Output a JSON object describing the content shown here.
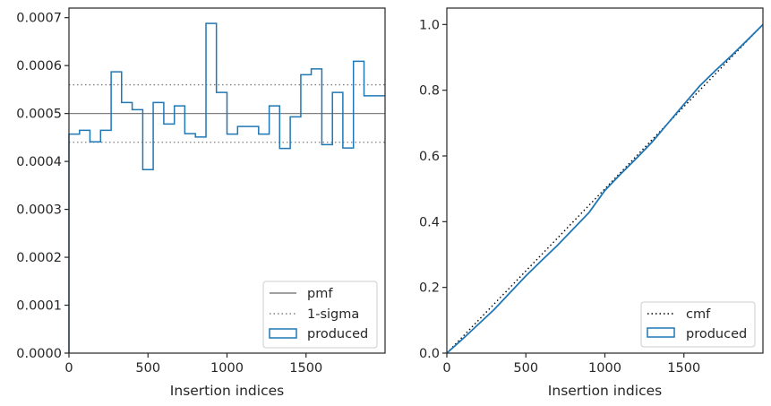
{
  "chart_data": [
    {
      "type": "histogram",
      "xlabel": "Insertion indices",
      "ylabel": "",
      "xlim": [
        0,
        2000
      ],
      "ylim": [
        0,
        0.00072
      ],
      "xticks": [
        0,
        500,
        1000,
        1500
      ],
      "xtick_labels": [
        "0",
        "500",
        "1000",
        "1500"
      ],
      "yticks": [
        0,
        0.0001,
        0.0002,
        0.0003,
        0.0004,
        0.0005,
        0.0006,
        0.0007
      ],
      "ytick_labels": [
        "0.0000",
        "0.0001",
        "0.0002",
        "0.0003",
        "0.0004",
        "0.0005",
        "0.0006",
        "0.0007"
      ],
      "reference_lines": [
        {
          "name": "pmf",
          "style": "solid",
          "color": "#808080",
          "y": 0.0005
        },
        {
          "name": "1-sigma",
          "style": "dotted",
          "color": "#808080",
          "y": 0.00056
        },
        {
          "name": "1-sigma",
          "style": "dotted",
          "color": "#808080",
          "y": 0.00044
        }
      ],
      "series": [
        {
          "name": "produced",
          "style": "step",
          "color": "#1f77b4",
          "bin_edges": [
            0,
            67,
            133,
            200,
            267,
            333,
            400,
            467,
            533,
            600,
            667,
            733,
            800,
            867,
            933,
            1000,
            1067,
            1133,
            1200,
            1267,
            1333,
            1400,
            1467,
            1533,
            1600,
            1667,
            1733,
            1800,
            1867,
            1933,
            2000
          ],
          "values": [
            0.000457,
            0.000465,
            0.000441,
            0.000465,
            0.000587,
            0.000523,
            0.000508,
            0.000383,
            0.000523,
            0.000478,
            0.000516,
            0.000458,
            0.000451,
            0.000688,
            0.000544,
            0.000457,
            0.000473,
            0.000473,
            0.000457,
            0.000516,
            0.000427,
            0.000493,
            0.000581,
            0.000593,
            0.000435,
            0.000544,
            0.000428,
            0.000609,
            0.000537,
            0.000537
          ]
        }
      ],
      "legend": {
        "placement": "lower right",
        "entries": [
          "pmf",
          "1-sigma",
          "produced"
        ]
      },
      "grid": false
    },
    {
      "type": "line",
      "xlabel": "Insertion indices",
      "ylabel": "",
      "xlim": [
        0,
        2000
      ],
      "ylim": [
        0,
        1.05
      ],
      "xticks": [
        0,
        500,
        1000,
        1500
      ],
      "xtick_labels": [
        "0",
        "500",
        "1000",
        "1500"
      ],
      "yticks": [
        0,
        0.2,
        0.4,
        0.6,
        0.8,
        1.0
      ],
      "ytick_labels": [
        "0.0",
        "0.2",
        "0.4",
        "0.6",
        "0.8",
        "1.0"
      ],
      "series": [
        {
          "name": "cmf",
          "style": "dotted",
          "color": "#000000",
          "x": [
            0,
            2000
          ],
          "values": [
            0,
            1.0
          ]
        },
        {
          "name": "produced",
          "style": "step",
          "color": "#1f77b4",
          "x": [
            0,
            100,
            200,
            300,
            400,
            500,
            600,
            700,
            800,
            900,
            1000,
            1100,
            1200,
            1300,
            1400,
            1500,
            1600,
            1700,
            1800,
            1900,
            2000
          ],
          "values": [
            0,
            0.043,
            0.088,
            0.133,
            0.184,
            0.235,
            0.282,
            0.328,
            0.378,
            0.428,
            0.495,
            0.545,
            0.593,
            0.643,
            0.7,
            0.757,
            0.813,
            0.86,
            0.905,
            0.952,
            1.0
          ]
        }
      ],
      "legend": {
        "placement": "lower right",
        "entries": [
          "cmf",
          "produced"
        ]
      },
      "grid": false
    }
  ]
}
